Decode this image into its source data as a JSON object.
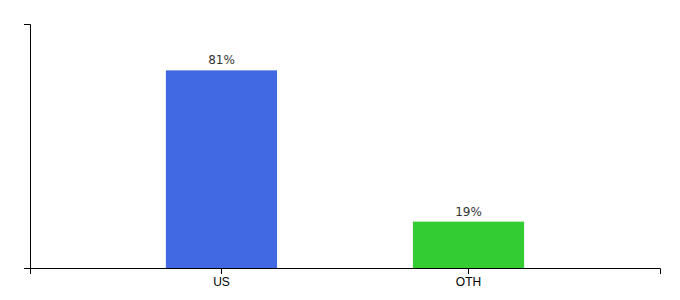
{
  "chart_data": {
    "type": "bar",
    "categories": [
      "US",
      "OTH"
    ],
    "values": [
      81,
      19
    ],
    "value_labels": [
      "81%",
      "19%"
    ],
    "colors": [
      "#4169e1",
      "#33cc33"
    ],
    "ylim": [
      0,
      100
    ],
    "data_labels": true,
    "tick_labels": "x",
    "grid": false
  }
}
